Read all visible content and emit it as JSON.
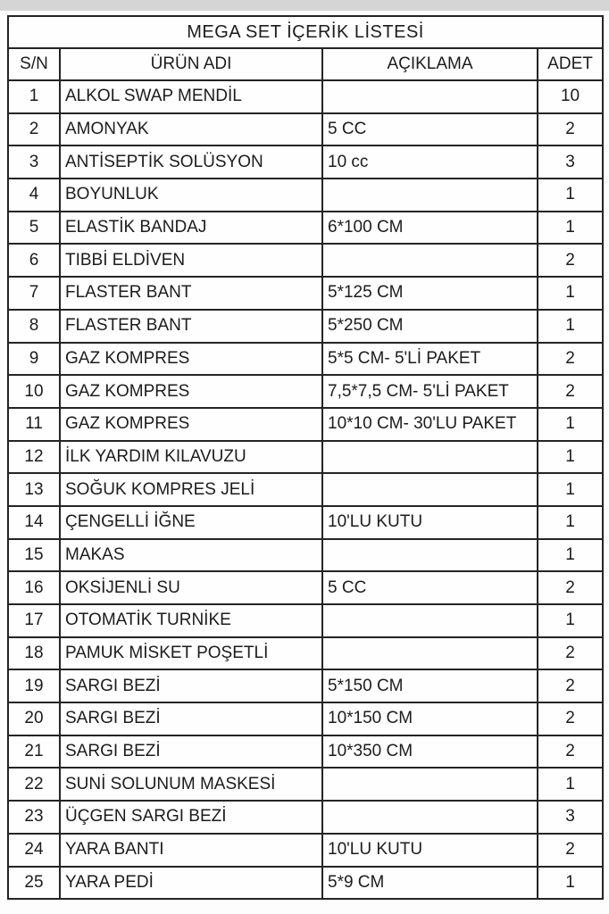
{
  "colors": {
    "border": "#242424",
    "text": "#1c1c1c",
    "page_background": "#fdfdfd",
    "top_strip": "#d5d5d5"
  },
  "table": {
    "title": "MEGA SET İÇERİK LİSTESİ",
    "headers": [
      "S/N",
      "ÜRÜN ADI",
      "AÇIKLAMA",
      "ADET"
    ],
    "rows": [
      [
        "1",
        "ALKOL SWAP MENDİL",
        "",
        "10"
      ],
      [
        "2",
        "AMONYAK",
        "5 CC",
        "2"
      ],
      [
        "3",
        "ANTİSEPTİK SOLÜSYON",
        "10 cc",
        "3"
      ],
      [
        "4",
        "BOYUNLUK",
        "",
        "1"
      ],
      [
        "5",
        "ELASTİK BANDAJ",
        "6*100 CM",
        "1"
      ],
      [
        "6",
        "TIBBİ ELDİVEN",
        "",
        "2"
      ],
      [
        "7",
        "FLASTER BANT",
        "5*125 CM",
        "1"
      ],
      [
        "8",
        "FLASTER BANT",
        "5*250 CM",
        "1"
      ],
      [
        "9",
        "GAZ KOMPRES",
        "5*5 CM- 5'Lİ PAKET",
        "2"
      ],
      [
        "10",
        "GAZ KOMPRES",
        "7,5*7,5 CM- 5'Lİ PAKET",
        "2"
      ],
      [
        "11",
        "GAZ KOMPRES",
        "10*10 CM- 30'LU PAKET",
        "1"
      ],
      [
        "12",
        "İLK YARDIM KILAVUZU",
        "",
        "1"
      ],
      [
        "13",
        "SOĞUK KOMPRES JELİ",
        "",
        "1"
      ],
      [
        "14",
        "ÇENGELLİ İĞNE",
        "10'LU KUTU",
        "1"
      ],
      [
        "15",
        "MAKAS",
        "",
        "1"
      ],
      [
        "16",
        "OKSİJENLİ SU",
        "5 CC",
        "2"
      ],
      [
        "17",
        "OTOMATİK TURNİKE",
        "",
        "1"
      ],
      [
        "18",
        "PAMUK MİSKET POŞETLİ",
        "",
        "2"
      ],
      [
        "19",
        "SARGI BEZİ",
        "5*150 CM",
        "2"
      ],
      [
        "20",
        "SARGI BEZİ",
        "10*150 CM",
        "2"
      ],
      [
        "21",
        "SARGI BEZİ",
        "10*350 CM",
        "2"
      ],
      [
        "22",
        "SUNİ SOLUNUM MASKESİ",
        "",
        "1"
      ],
      [
        "23",
        "ÜÇGEN SARGI BEZİ",
        "",
        "3"
      ],
      [
        "24",
        "YARA BANTI",
        "10'LU KUTU",
        "2"
      ],
      [
        "25",
        "YARA PEDİ",
        "5*9 CM",
        "1"
      ]
    ]
  }
}
